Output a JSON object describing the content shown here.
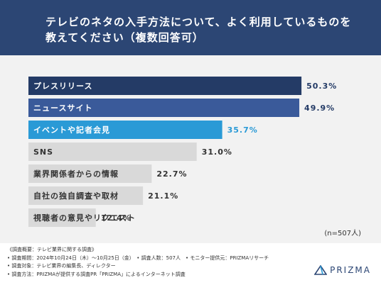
{
  "header": {
    "title_line1": "テレビのネタの入手方法について、よく利用しているものを",
    "title_line2": "教えてください（複数回答可）"
  },
  "chart_data": {
    "type": "bar",
    "orientation": "horizontal",
    "categories": [
      "プレスリリース",
      "ニュースサイト",
      "イベントや記者会見",
      "SNS",
      "業界関係者からの情報",
      "自社の独自調査や取材",
      "視聴者の意見やリクエスト"
    ],
    "values": [
      50.3,
      49.9,
      35.7,
      31.0,
      22.7,
      21.1,
      12.4
    ],
    "value_labels": [
      "50.3%",
      "49.9%",
      "35.7%",
      "31.0%",
      "22.7%",
      "21.1%",
      "12.4%"
    ],
    "bar_colors": [
      "#243b66",
      "#3a5a9a",
      "#2a9ad6",
      "#d9d9d9",
      "#d9d9d9",
      "#d9d9d9",
      "#d9d9d9"
    ],
    "label_colors": [
      "#ffffff",
      "#ffffff",
      "#ffffff",
      "#333333",
      "#333333",
      "#333333",
      "#333333"
    ],
    "value_colors": [
      "#243b66",
      "#243b66",
      "#2a9ad6",
      "#333333",
      "#333333",
      "#333333",
      "#333333"
    ],
    "xlim": [
      0,
      55
    ],
    "note": "(n=507人)"
  },
  "footer": {
    "lines": [
      "《調査概要：テレビ業界に関する調査》",
      "• 調査期間：2024年10月24日（木）〜10月25日（金）　• 調査人数：507人　• モニター提供元：PRIZMAリサーチ",
      "• 調査対象：テレビ業界の編集長、ディレクター",
      "• 調査方法：PRIZMAが提供する調査PR「PRIZMA」によるインターネット調査"
    ]
  },
  "logo": {
    "text": "PRIZMA",
    "icon": "prizma-logo-icon"
  }
}
